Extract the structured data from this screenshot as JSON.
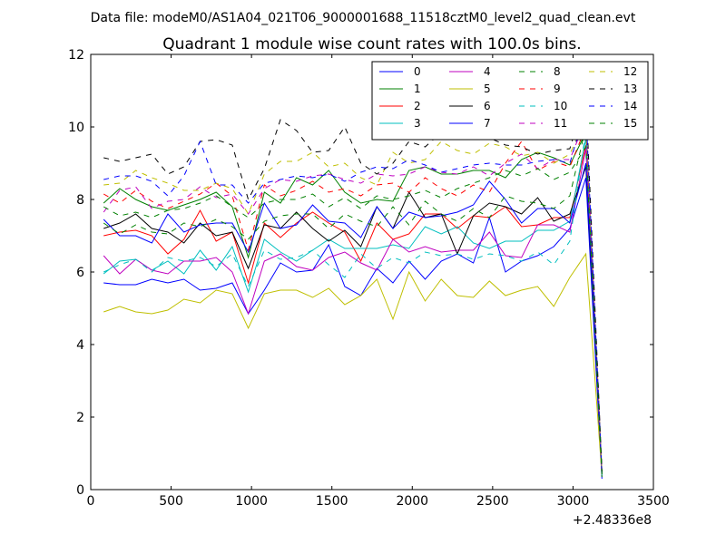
{
  "chart_data": {
    "type": "line",
    "suptitle": "Data file: modeM0/AS1A04_021T06_9000001688_11518cztM0_level2_quad_clean.evt",
    "title": "Quadrant 1 module wise count rates with 100.0s bins.",
    "xlabel": "",
    "ylabel": "",
    "x_offset_label": "+2.48336e8",
    "xlim": [
      0,
      3500
    ],
    "ylim": [
      0,
      12
    ],
    "x_ticks": [
      0,
      500,
      1000,
      1500,
      2000,
      2500,
      3000,
      3500
    ],
    "y_ticks": [
      0,
      2,
      4,
      6,
      8,
      10,
      12
    ],
    "grid": false,
    "legend_position": "top-right",
    "x": [
      80,
      180,
      280,
      380,
      480,
      580,
      680,
      780,
      880,
      980,
      1080,
      1180,
      1280,
      1380,
      1480,
      1580,
      1680,
      1780,
      1880,
      1980,
      2080,
      2180,
      2280,
      2380,
      2480,
      2580,
      2680,
      2780,
      2880,
      2980,
      3080,
      3180
    ],
    "series": [
      {
        "name": "0",
        "color": "#0000ff",
        "dash": "solid",
        "values": [
          5.7,
          5.65,
          5.65,
          5.8,
          5.7,
          5.8,
          5.5,
          5.55,
          5.7,
          4.85,
          5.5,
          6.25,
          6.0,
          6.05,
          6.75,
          5.6,
          5.35,
          6.1,
          5.7,
          6.3,
          5.8,
          6.3,
          6.5,
          6.25,
          7.5,
          6.0,
          6.3,
          6.45,
          6.7,
          7.2,
          8.6,
          0.3
        ]
      },
      {
        "name": "1",
        "color": "#008000",
        "dash": "solid",
        "values": [
          7.9,
          8.3,
          8.0,
          7.8,
          7.7,
          7.85,
          8.0,
          8.2,
          7.8,
          6.4,
          8.2,
          7.9,
          8.6,
          8.4,
          8.8,
          8.2,
          7.9,
          8.0,
          7.95,
          8.8,
          8.9,
          8.7,
          8.7,
          8.8,
          8.8,
          8.6,
          9.1,
          9.3,
          9.15,
          8.95,
          9.85,
          0.35
        ]
      },
      {
        "name": "2",
        "color": "#ff0000",
        "dash": "solid",
        "values": [
          7.0,
          7.1,
          7.15,
          7.0,
          6.5,
          6.9,
          7.7,
          6.85,
          7.1,
          5.7,
          7.35,
          6.95,
          7.35,
          7.65,
          7.35,
          7.1,
          6.3,
          7.35,
          6.9,
          7.05,
          7.6,
          7.6,
          7.2,
          7.55,
          7.5,
          7.8,
          7.25,
          7.3,
          7.5,
          7.5,
          9.5,
          0.4
        ]
      },
      {
        "name": "3",
        "color": "#00bfbf",
        "dash": "solid",
        "values": [
          5.95,
          6.3,
          6.35,
          6.05,
          6.3,
          5.95,
          6.6,
          6.05,
          6.7,
          5.45,
          6.9,
          6.55,
          6.3,
          6.6,
          6.9,
          6.65,
          6.65,
          6.65,
          6.75,
          6.65,
          7.25,
          7.05,
          7.25,
          6.8,
          6.65,
          6.85,
          6.85,
          7.15,
          7.15,
          7.4,
          9.7,
          0.45
        ]
      },
      {
        "name": "4",
        "color": "#bf00bf",
        "dash": "solid",
        "values": [
          6.45,
          5.95,
          6.35,
          6.05,
          5.95,
          6.3,
          6.3,
          6.4,
          6.0,
          4.85,
          6.3,
          6.5,
          6.15,
          6.05,
          6.4,
          6.55,
          6.25,
          6.05,
          6.9,
          6.55,
          6.7,
          6.55,
          6.6,
          6.6,
          7.1,
          6.45,
          6.4,
          7.3,
          7.3,
          7.1,
          9.4,
          0.4
        ]
      },
      {
        "name": "5",
        "color": "#bfbf00",
        "dash": "solid",
        "values": [
          4.9,
          5.05,
          4.9,
          4.85,
          4.95,
          5.25,
          5.15,
          5.5,
          5.4,
          4.45,
          5.4,
          5.5,
          5.5,
          5.3,
          5.55,
          5.1,
          5.35,
          5.8,
          4.7,
          6.0,
          5.2,
          5.8,
          5.35,
          5.3,
          5.75,
          5.35,
          5.5,
          5.6,
          5.05,
          5.85,
          6.5,
          0.4
        ]
      },
      {
        "name": "6",
        "color": "#000000",
        "dash": "solid",
        "values": [
          7.2,
          7.35,
          7.6,
          7.2,
          7.1,
          6.8,
          7.35,
          7.0,
          7.1,
          6.1,
          7.3,
          7.2,
          7.65,
          7.2,
          6.85,
          7.15,
          6.7,
          7.8,
          7.2,
          8.2,
          7.5,
          7.6,
          6.5,
          7.55,
          7.9,
          7.8,
          7.6,
          8.05,
          7.4,
          7.6,
          8.9,
          0.5
        ]
      },
      {
        "name": "7",
        "color": "#0000ff",
        "dash": "solid",
        "values": [
          7.45,
          7.0,
          7.0,
          6.8,
          7.6,
          7.1,
          7.3,
          7.35,
          7.35,
          6.55,
          7.9,
          7.2,
          7.3,
          7.85,
          7.4,
          7.35,
          6.95,
          7.8,
          7.2,
          7.65,
          7.5,
          7.55,
          7.65,
          7.85,
          8.5,
          8.0,
          7.35,
          7.75,
          7.75,
          7.35,
          9.0,
          0.45
        ]
      },
      {
        "name": "8",
        "color": "#008000",
        "dash": "dashed",
        "values": [
          7.35,
          7.05,
          7.3,
          7.1,
          7.05,
          7.35,
          7.25,
          7.45,
          7.25,
          6.9,
          7.4,
          7.55,
          7.6,
          7.6,
          7.2,
          7.6,
          7.4,
          7.25,
          7.8,
          7.3,
          7.95,
          7.6,
          7.4,
          7.75,
          7.5,
          8.1,
          7.95,
          7.9,
          7.75,
          8.1,
          10.0,
          0.4
        ]
      },
      {
        "name": "9",
        "color": "#ff0000",
        "dash": "dashed",
        "values": [
          8.15,
          7.9,
          8.25,
          7.95,
          7.75,
          7.95,
          8.15,
          8.45,
          8.1,
          6.6,
          8.4,
          8.1,
          8.25,
          8.5,
          8.2,
          8.3,
          8.1,
          8.4,
          8.45,
          8.2,
          8.6,
          8.3,
          8.1,
          8.4,
          8.2,
          9.0,
          9.6,
          8.8,
          9.05,
          8.9,
          10.0,
          0.45
        ]
      },
      {
        "name": "10",
        "color": "#00bfbf",
        "dash": "dashed",
        "values": [
          6.0,
          6.2,
          6.35,
          6.0,
          6.4,
          6.3,
          6.4,
          6.15,
          6.5,
          5.6,
          6.6,
          6.35,
          6.4,
          6.6,
          6.2,
          5.85,
          6.5,
          6.1,
          6.4,
          6.25,
          6.55,
          6.45,
          6.5,
          6.35,
          6.5,
          6.45,
          6.3,
          6.55,
          6.2,
          6.85,
          9.9,
          0.4
        ]
      },
      {
        "name": "11",
        "color": "#bf00bf",
        "dash": "dashed",
        "values": [
          7.65,
          8.25,
          8.35,
          7.75,
          7.95,
          8.0,
          8.35,
          8.05,
          8.15,
          7.6,
          8.3,
          8.55,
          8.5,
          8.65,
          8.7,
          8.55,
          8.45,
          8.7,
          8.65,
          8.7,
          8.9,
          8.75,
          8.7,
          8.9,
          8.65,
          9.0,
          9.25,
          8.85,
          9.1,
          9.1,
          10.2,
          0.45
        ]
      },
      {
        "name": "12",
        "color": "#bfbf00",
        "dash": "dashed",
        "values": [
          8.4,
          8.45,
          8.8,
          8.6,
          8.45,
          8.25,
          8.25,
          8.45,
          8.3,
          7.6,
          8.7,
          9.05,
          9.05,
          9.3,
          8.9,
          9.0,
          8.6,
          8.4,
          9.3,
          9.0,
          9.1,
          9.6,
          9.35,
          9.25,
          9.55,
          9.45,
          9.2,
          9.3,
          9.0,
          9.25,
          10.2,
          0.5
        ]
      },
      {
        "name": "13",
        "color": "#000000",
        "dash": "dashed",
        "values": [
          9.15,
          9.05,
          9.15,
          9.25,
          8.7,
          8.9,
          9.6,
          9.65,
          9.5,
          8.0,
          8.85,
          10.2,
          9.9,
          9.3,
          9.35,
          10.0,
          9.0,
          8.7,
          9.0,
          9.6,
          9.45,
          9.85,
          9.8,
          9.8,
          9.7,
          9.5,
          9.45,
          9.25,
          9.35,
          9.4,
          10.9,
          0.5
        ]
      },
      {
        "name": "14",
        "color": "#0000ff",
        "dash": "dashed",
        "values": [
          8.55,
          8.65,
          8.65,
          8.5,
          8.1,
          8.65,
          9.6,
          8.4,
          8.4,
          7.9,
          8.45,
          8.55,
          8.65,
          8.6,
          8.7,
          8.5,
          8.75,
          8.9,
          8.85,
          9.1,
          8.95,
          8.75,
          8.85,
          8.95,
          9.0,
          8.95,
          8.95,
          9.05,
          9.1,
          9.0,
          10.5,
          0.4
        ]
      },
      {
        "name": "15",
        "color": "#008000",
        "dash": "dashed",
        "values": [
          7.8,
          7.55,
          7.65,
          7.5,
          7.7,
          7.75,
          7.9,
          8.1,
          7.8,
          7.5,
          7.9,
          8.0,
          8.0,
          8.15,
          7.8,
          8.05,
          7.75,
          8.1,
          8.0,
          8.1,
          8.25,
          8.05,
          8.3,
          8.45,
          8.6,
          8.8,
          8.65,
          8.85,
          8.55,
          8.75,
          9.45,
          0.4
        ]
      }
    ]
  }
}
